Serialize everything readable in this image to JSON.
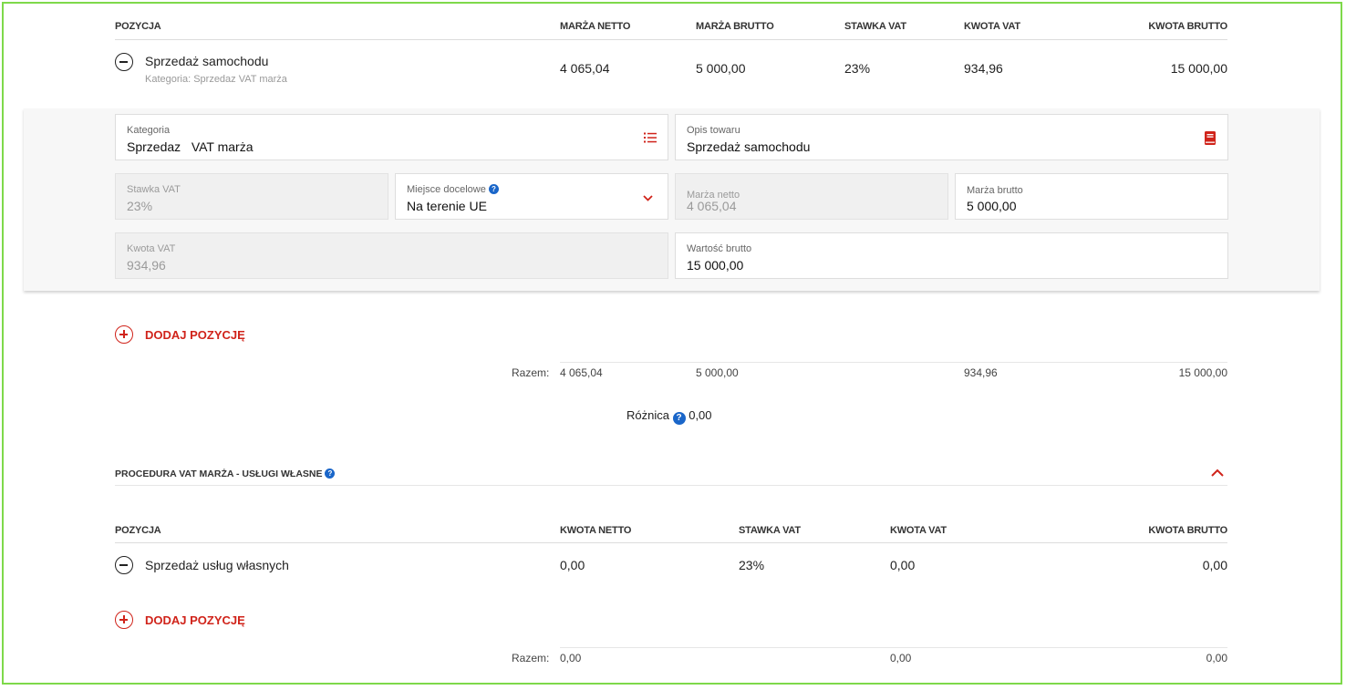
{
  "section1": {
    "headers": {
      "pozycja": "POZYCJA",
      "marza_netto": "MARŻA NETTO",
      "marza_brutto": "MARŻA BRUTTO",
      "stawka_vat": "STAWKA VAT",
      "kwota_vat": "KWOTA VAT",
      "kwota_brutto": "KWOTA BRUTTO"
    },
    "row": {
      "name": "Sprzedaż samochodu",
      "category": "Kategoria: Sprzedaz VAT marża",
      "marza_netto": "4 065,04",
      "marza_brutto": "5 000,00",
      "stawka_vat": "23%",
      "kwota_vat": "934,96",
      "kwota_brutto": "15 000,00"
    },
    "form": {
      "kategoria": {
        "label": "Kategoria",
        "value": "Sprzedaz   VAT marża"
      },
      "opis": {
        "label": "Opis towaru",
        "value": "Sprzedaż samochodu"
      },
      "stawka": {
        "label": "Stawka VAT",
        "value": "23%"
      },
      "miejsce": {
        "label": "Miejsce docelowe",
        "value": "Na terenie UE"
      },
      "marza_netto": {
        "label": "Marża netto",
        "value": "4 065,04"
      },
      "marza_brutto": {
        "label": "Marża brutto",
        "value": "5 000,00"
      },
      "kwota_vat": {
        "label": "Kwota VAT",
        "value": "934,96"
      },
      "wartosc_brutto": {
        "label": "Wartość brutto",
        "value": "15 000,00"
      }
    },
    "add_label": "DODAJ POZYCJĘ",
    "totals": {
      "label": "Razem:",
      "marza_netto": "4 065,04",
      "marza_brutto": "5 000,00",
      "kwota_vat": "934,96",
      "kwota_brutto": "15 000,00"
    },
    "difference": {
      "label": "Różnica",
      "value": "0,00"
    }
  },
  "section2": {
    "title": "PROCEDURA VAT MARŻA - USŁUGI WŁASNE",
    "headers": {
      "pozycja": "POZYCJA",
      "kwota_netto": "KWOTA NETTO",
      "stawka_vat": "STAWKA VAT",
      "kwota_vat": "KWOTA VAT",
      "kwota_brutto": "KWOTA BRUTTO"
    },
    "row": {
      "name": "Sprzedaż usług własnych",
      "kwota_netto": "0,00",
      "stawka_vat": "23%",
      "kwota_vat": "0,00",
      "kwota_brutto": "0,00"
    },
    "add_label": "DODAJ POZYCJĘ",
    "totals": {
      "label": "Razem:",
      "kwota_netto": "0,00",
      "kwota_vat": "0,00",
      "kwota_brutto": "0,00"
    }
  },
  "icons": {
    "help": "?",
    "accent_color": "#d0231a",
    "help_color": "#1a66c9",
    "frame_color": "#7ed94a"
  }
}
